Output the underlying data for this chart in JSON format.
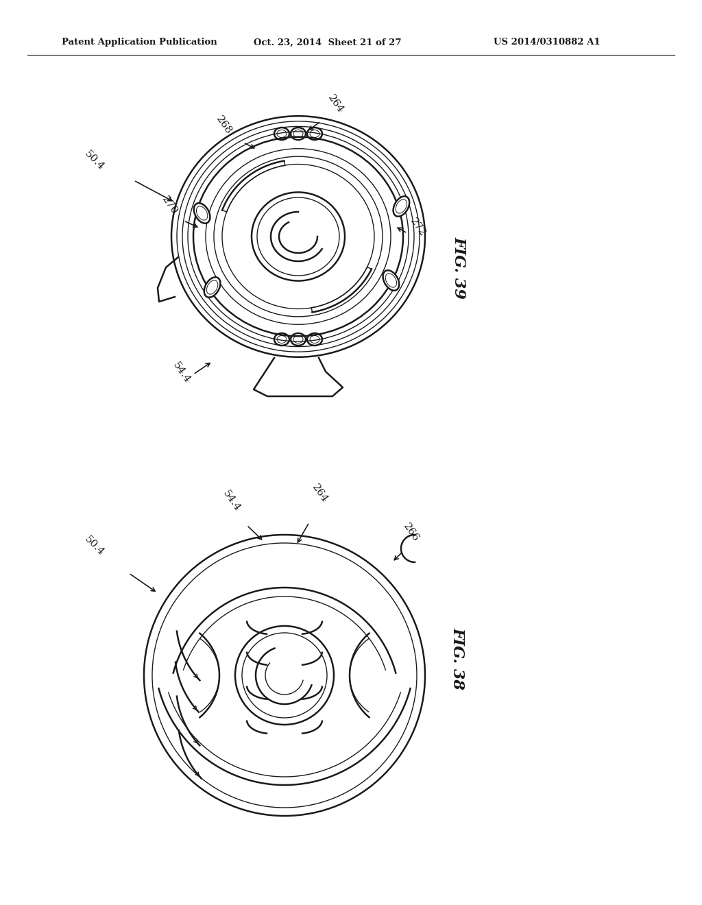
{
  "bg_color": "#ffffff",
  "line_color": "#1a1a1a",
  "header_text1": "Patent Application Publication",
  "header_text2": "Oct. 23, 2014  Sheet 21 of 27",
  "header_text3": "US 2014/0310882 A1",
  "fig39_label": "FIG. 39",
  "fig38_label": "FIG. 38"
}
